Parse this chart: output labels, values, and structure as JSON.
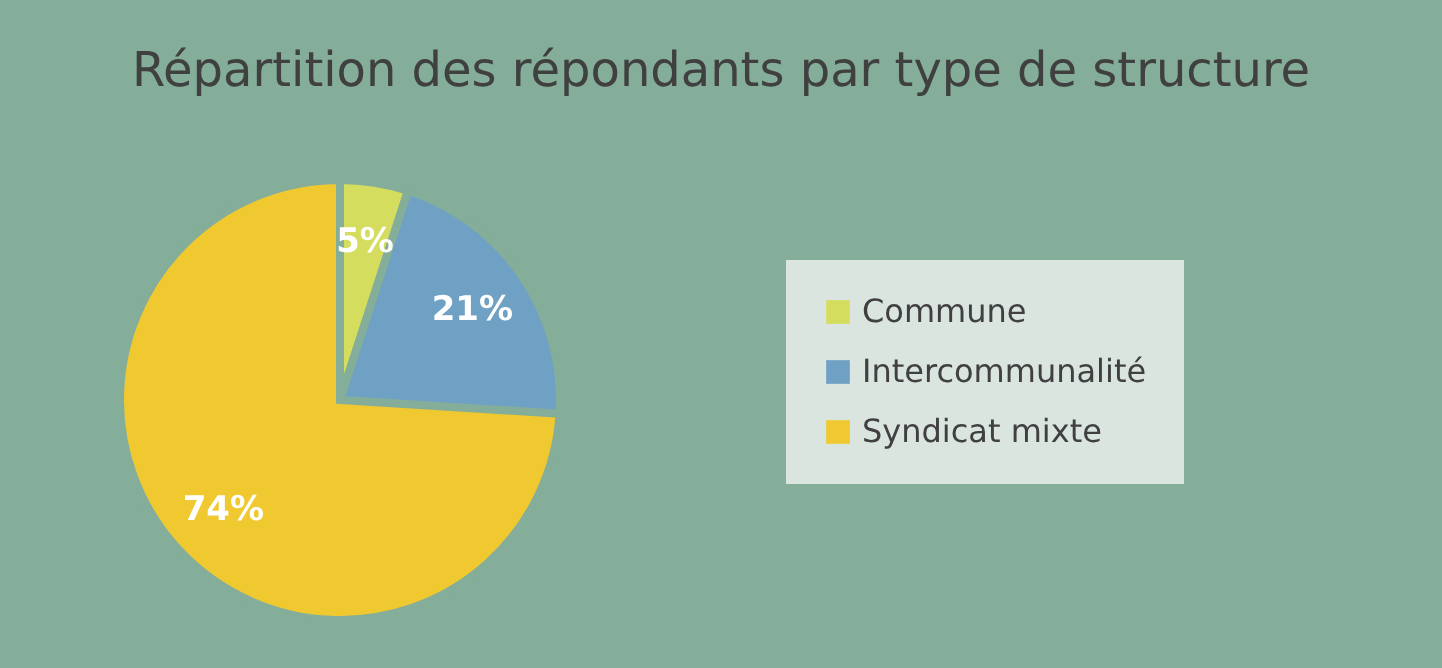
{
  "chart_data": {
    "type": "pie",
    "title": "Répartition des répondants par type de structure",
    "categories": [
      "Commune",
      "Intercommunalité",
      "Syndicat mixte"
    ],
    "values": [
      5,
      21,
      74
    ],
    "colors": [
      "#d5dd5e",
      "#6fa1c4",
      "#f0c930"
    ],
    "value_labels": [
      "5%",
      "21%",
      "74%"
    ],
    "legend": "right"
  }
}
